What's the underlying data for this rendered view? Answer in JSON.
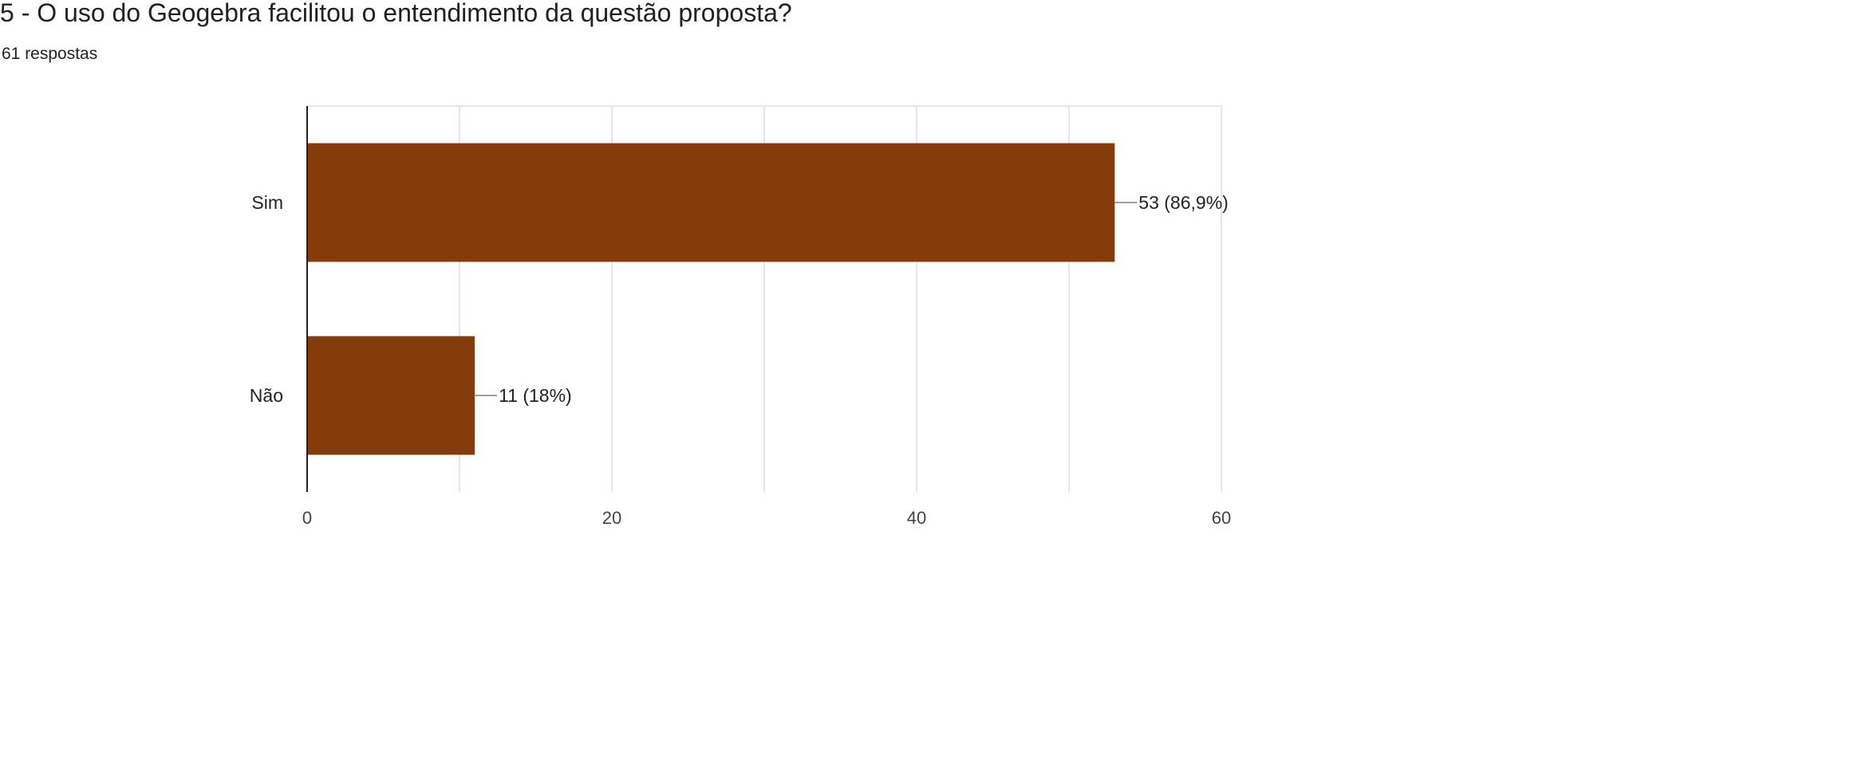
{
  "header": {
    "title": "5 - O uso do Geogebra facilitou o entendimento da questão proposta?",
    "response_count": "61 respostas"
  },
  "chart_data": {
    "type": "bar",
    "orientation": "horizontal",
    "categories": [
      "Sim",
      "Não"
    ],
    "values": [
      53,
      11
    ],
    "value_labels": [
      "53 (86,9%)",
      "11 (18%)"
    ],
    "xlim": [
      0,
      60
    ],
    "x_ticks": [
      0,
      20,
      40,
      60
    ],
    "grid": true,
    "bar_color": "#843c0a",
    "grid_color": "#e6e6e6",
    "axis_color": "#222222"
  }
}
